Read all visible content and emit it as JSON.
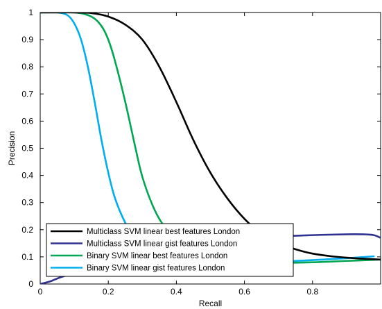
{
  "chart_data": {
    "type": "line",
    "title": "",
    "xlabel": "Recall",
    "ylabel": "Precision",
    "xlim": [
      0,
      1
    ],
    "ylim": [
      0,
      1
    ],
    "x_ticks": [
      0,
      0.2,
      0.4,
      0.6,
      0.8
    ],
    "x_tick_labels": [
      "0",
      "0.2",
      "0.4",
      "0.6",
      "0.8"
    ],
    "y_ticks": [
      0,
      0.1,
      0.2,
      0.3,
      0.4,
      0.5,
      0.6,
      0.7,
      0.8,
      0.9,
      1
    ],
    "y_tick_labels": [
      "0",
      "0.1",
      "0.2",
      "0.3",
      "0.4",
      "0.5",
      "0.6",
      "0.7",
      "0.8",
      "0.9",
      "1"
    ],
    "grid": false,
    "legend_position": "bottom-left",
    "series": [
      {
        "name": "Multiclass SVM linear best features London",
        "color": "#000000",
        "points": [
          [
            0,
            1
          ],
          [
            0.1,
            1
          ],
          [
            0.15,
            0.998
          ],
          [
            0.2,
            0.985
          ],
          [
            0.25,
            0.955
          ],
          [
            0.3,
            0.9
          ],
          [
            0.35,
            0.8
          ],
          [
            0.4,
            0.67
          ],
          [
            0.45,
            0.53
          ],
          [
            0.5,
            0.41
          ],
          [
            0.55,
            0.315
          ],
          [
            0.6,
            0.24
          ],
          [
            0.65,
            0.185
          ],
          [
            0.7,
            0.15
          ],
          [
            0.75,
            0.128
          ],
          [
            0.8,
            0.112
          ],
          [
            0.85,
            0.103
          ],
          [
            0.9,
            0.097
          ],
          [
            0.95,
            0.093
          ],
          [
            1,
            0.09
          ]
        ]
      },
      {
        "name": "Multiclass SVM linear gist features London",
        "color": "#2e3192",
        "points": [
          [
            0,
            0
          ],
          [
            0.03,
            0.01
          ],
          [
            0.06,
            0.025
          ],
          [
            0.1,
            0.04
          ],
          [
            0.15,
            0.06
          ],
          [
            0.2,
            0.08
          ],
          [
            0.3,
            0.11
          ],
          [
            0.4,
            0.135
          ],
          [
            0.5,
            0.155
          ],
          [
            0.6,
            0.168
          ],
          [
            0.7,
            0.175
          ],
          [
            0.8,
            0.18
          ],
          [
            0.9,
            0.183
          ],
          [
            0.95,
            0.183
          ],
          [
            0.98,
            0.18
          ],
          [
            1,
            0.17
          ]
        ]
      },
      {
        "name": "Binary SVM linear best features London",
        "color": "#00a651",
        "points": [
          [
            0,
            1
          ],
          [
            0.1,
            1
          ],
          [
            0.15,
            0.985
          ],
          [
            0.18,
            0.95
          ],
          [
            0.2,
            0.9
          ],
          [
            0.22,
            0.82
          ],
          [
            0.25,
            0.67
          ],
          [
            0.28,
            0.5
          ],
          [
            0.3,
            0.395
          ],
          [
            0.33,
            0.29
          ],
          [
            0.36,
            0.22
          ],
          [
            0.4,
            0.165
          ],
          [
            0.45,
            0.125
          ],
          [
            0.5,
            0.098
          ],
          [
            0.55,
            0.085
          ],
          [
            0.6,
            0.08
          ],
          [
            0.7,
            0.078
          ],
          [
            0.8,
            0.08
          ],
          [
            0.9,
            0.085
          ],
          [
            1,
            0.09
          ]
        ]
      },
      {
        "name": "Binary SVM linear gist features London",
        "color": "#00aeef",
        "points": [
          [
            0,
            1
          ],
          [
            0.05,
            1
          ],
          [
            0.08,
            0.99
          ],
          [
            0.1,
            0.96
          ],
          [
            0.12,
            0.9
          ],
          [
            0.14,
            0.8
          ],
          [
            0.16,
            0.67
          ],
          [
            0.18,
            0.53
          ],
          [
            0.2,
            0.41
          ],
          [
            0.22,
            0.315
          ],
          [
            0.25,
            0.225
          ],
          [
            0.28,
            0.165
          ],
          [
            0.32,
            0.125
          ],
          [
            0.36,
            0.1
          ],
          [
            0.4,
            0.085
          ],
          [
            0.5,
            0.075
          ],
          [
            0.6,
            0.078
          ],
          [
            0.7,
            0.082
          ],
          [
            0.8,
            0.088
          ],
          [
            0.9,
            0.095
          ],
          [
            0.98,
            0.102
          ]
        ]
      }
    ]
  }
}
